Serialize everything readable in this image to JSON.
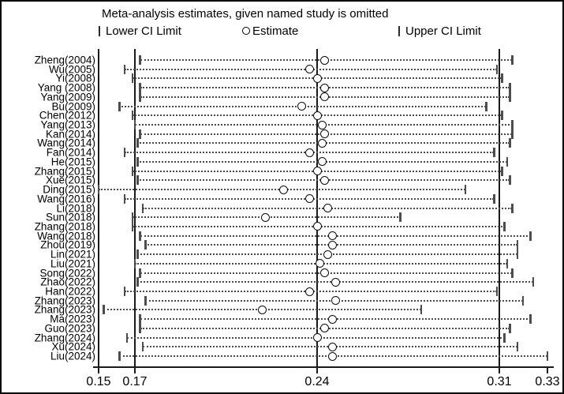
{
  "title": "Meta-analysis estimates, given named study is omitted",
  "legend": {
    "lower_label": "Lower CI Limit",
    "estimate_label": "Estimate",
    "upper_label": "Upper CI Limit"
  },
  "colors": {
    "foreground": "#000000",
    "background": "#ffffff",
    "dotted_line": "#4a4a4a",
    "ci_tick": "#4d4d4d"
  },
  "chart_data": {
    "type": "scatter",
    "subtype": "leave-one-out-sensitivity-forest",
    "title": "Meta-analysis estimates, given named study is omitted",
    "xlabel": "",
    "ylabel": "",
    "xlim": [
      0.15,
      0.33
    ],
    "grid": false,
    "legend_position": "top",
    "legend_entries": [
      "Lower CI Limit",
      "Estimate",
      "Upper CI Limit"
    ],
    "x_ticks": [
      {
        "label": "0.15",
        "value": 0.15
      },
      {
        "label": "0.17",
        "value": 0.17
      },
      {
        "label": "0.24",
        "value": 0.24
      },
      {
        "label": "0.31",
        "value": 0.31
      },
      {
        "label": "0.33",
        "value": 0.33
      }
    ],
    "reference_lines": [
      0.17,
      0.24,
      0.31
    ],
    "studies": [
      {
        "label": "Zheng(2004)",
        "lower": 0.172,
        "estimate": 0.243,
        "upper": 0.315
      },
      {
        "label": "Wu(2005)",
        "lower": 0.166,
        "estimate": 0.237,
        "upper": 0.309
      },
      {
        "label": "Yi(2008)",
        "lower": 0.169,
        "estimate": 0.24,
        "upper": 0.311
      },
      {
        "label": "Yang (2008)",
        "lower": 0.172,
        "estimate": 0.243,
        "upper": 0.314
      },
      {
        "label": "Yang(2009)",
        "lower": 0.172,
        "estimate": 0.243,
        "upper": 0.314
      },
      {
        "label": "Bu(2009)",
        "lower": 0.164,
        "estimate": 0.234,
        "upper": 0.305
      },
      {
        "label": "Chen(2012)",
        "lower": 0.169,
        "estimate": 0.24,
        "upper": 0.311
      },
      {
        "label": "Yang(2013)",
        "lower": 0.17,
        "estimate": 0.242,
        "upper": 0.315
      },
      {
        "label": "Kan(2014)",
        "lower": 0.172,
        "estimate": 0.243,
        "upper": 0.315
      },
      {
        "label": "Wang(2014)",
        "lower": 0.171,
        "estimate": 0.242,
        "upper": 0.314
      },
      {
        "label": "Fan(2014)",
        "lower": 0.166,
        "estimate": 0.237,
        "upper": 0.308
      },
      {
        "label": "He(2015)",
        "lower": 0.171,
        "estimate": 0.242,
        "upper": 0.313
      },
      {
        "label": "Zhang(2015)",
        "lower": 0.169,
        "estimate": 0.24,
        "upper": 0.311
      },
      {
        "label": "Xue(2015)",
        "lower": 0.171,
        "estimate": 0.243,
        "upper": 0.314
      },
      {
        "label": "Ding(2015)",
        "lower": 0.156,
        "estimate": 0.227,
        "upper": 0.297
      },
      {
        "label": "Wang(2016)",
        "lower": 0.166,
        "estimate": 0.237,
        "upper": 0.308
      },
      {
        "label": "Li(2018)",
        "lower": 0.173,
        "estimate": 0.244,
        "upper": 0.315
      },
      {
        "label": "Sun(2018)",
        "lower": 0.169,
        "estimate": 0.22,
        "upper": 0.272
      },
      {
        "label": "Zhang(2018)",
        "lower": 0.169,
        "estimate": 0.24,
        "upper": 0.312
      },
      {
        "label": "Wang(2018)",
        "lower": 0.172,
        "estimate": 0.246,
        "upper": 0.322
      },
      {
        "label": "Zhou(2019)",
        "lower": 0.174,
        "estimate": 0.246,
        "upper": 0.317
      },
      {
        "label": "Lin(2021)",
        "lower": 0.171,
        "estimate": 0.244,
        "upper": 0.317
      },
      {
        "label": "Liu(2021)",
        "lower": 0.17,
        "estimate": 0.241,
        "upper": 0.313
      },
      {
        "label": "Song(2022)",
        "lower": 0.172,
        "estimate": 0.243,
        "upper": 0.315
      },
      {
        "label": "Zhao(2022)",
        "lower": 0.171,
        "estimate": 0.247,
        "upper": 0.323
      },
      {
        "label": "Han(2022)",
        "lower": 0.166,
        "estimate": 0.237,
        "upper": 0.309
      },
      {
        "label": "Zhang(2023)",
        "lower": 0.174,
        "estimate": 0.247,
        "upper": 0.319
      },
      {
        "label": "Zhang(2023)",
        "lower": 0.158,
        "estimate": 0.219,
        "upper": 0.28
      },
      {
        "label": "Ma(2023)",
        "lower": 0.172,
        "estimate": 0.246,
        "upper": 0.322
      },
      {
        "label": "Guo(2023)",
        "lower": 0.172,
        "estimate": 0.243,
        "upper": 0.314
      },
      {
        "label": "Zhang(2024)",
        "lower": 0.167,
        "estimate": 0.24,
        "upper": 0.312
      },
      {
        "label": "Xu(2024)",
        "lower": 0.173,
        "estimate": 0.246,
        "upper": 0.317
      },
      {
        "label": "Liu(2024)",
        "lower": 0.164,
        "estimate": 0.246,
        "upper": 0.329
      }
    ]
  }
}
